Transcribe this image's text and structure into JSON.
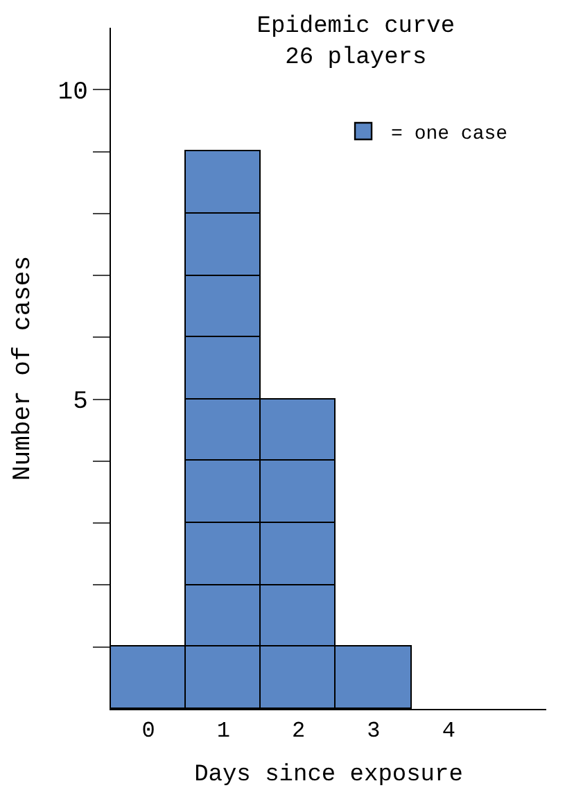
{
  "chart_data": {
    "type": "bar",
    "stacked": true,
    "title": "Epidemic curve",
    "subtitle": "26 players",
    "xlabel": "Days since exposure",
    "ylabel": "Number of cases",
    "categories": [
      "0",
      "1",
      "2",
      "3",
      "4"
    ],
    "series": [
      {
        "name": "= one case",
        "color": "#5b87c5",
        "values": [
          1,
          1,
          1,
          1,
          null
        ]
      },
      {
        "color": "#5b87c5",
        "values": [
          null,
          1,
          1,
          null,
          null
        ]
      },
      {
        "color": "#5b87c5",
        "values": [
          null,
          1,
          1,
          null,
          null
        ]
      },
      {
        "color": "#5b87c5",
        "values": [
          null,
          1,
          1,
          null,
          null
        ]
      },
      {
        "color": "#5b87c5",
        "values": [
          null,
          1,
          1,
          null,
          null
        ]
      },
      {
        "color": "#5b87c5",
        "values": [
          null,
          1,
          null,
          null,
          null
        ]
      },
      {
        "color": "#5b87c5",
        "values": [
          null,
          1,
          null,
          null,
          null
        ]
      },
      {
        "color": "#5b87c5",
        "values": [
          null,
          1,
          null,
          null,
          null
        ]
      },
      {
        "color": "#5b87c5",
        "values": [
          null,
          1,
          null,
          null,
          null
        ]
      }
    ],
    "ylim": [
      0,
      11
    ],
    "yticks": [
      {
        "value": 1,
        "label": null
      },
      {
        "value": 2,
        "label": null
      },
      {
        "value": 3,
        "label": null
      },
      {
        "value": 4,
        "label": null
      },
      5,
      {
        "value": 6,
        "label": null
      },
      {
        "value": 7,
        "label": null
      },
      {
        "value": 8,
        "label": null
      },
      {
        "value": 9,
        "label": null
      },
      10
    ],
    "legend": "top right"
  }
}
